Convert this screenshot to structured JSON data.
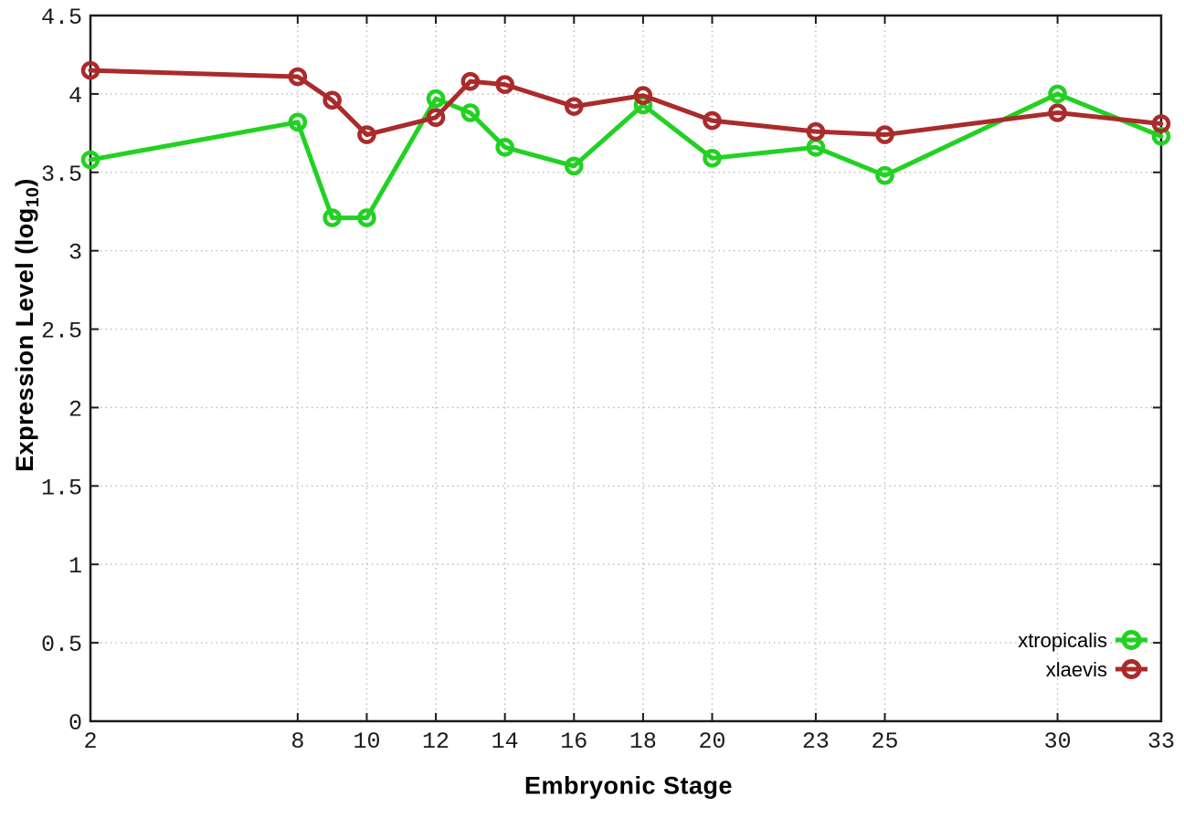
{
  "chart_data": {
    "type": "line",
    "title": "",
    "xlabel": "Embryonic Stage",
    "ylabel": "Expression Level (log10)",
    "ylabel_parts": {
      "main": "Expression Level (log",
      "sub": "10",
      "end": ")"
    },
    "x": [
      2,
      8,
      9,
      10,
      12,
      13,
      14,
      16,
      18,
      20,
      23,
      25,
      30,
      33
    ],
    "series": [
      {
        "name": "xtropicalis",
        "color": "#22d122",
        "marker": "open-circle",
        "values": [
          3.58,
          3.82,
          3.21,
          3.21,
          3.97,
          3.88,
          3.66,
          3.54,
          3.93,
          3.59,
          3.66,
          3.48,
          4.0,
          3.73
        ]
      },
      {
        "name": "xlaevis",
        "color": "#aa2b2b",
        "marker": "open-circle",
        "values": [
          4.15,
          4.11,
          3.96,
          3.74,
          3.85,
          4.08,
          4.06,
          3.92,
          3.99,
          3.83,
          3.76,
          3.74,
          3.88,
          3.81
        ]
      }
    ],
    "xlim": [
      2,
      33
    ],
    "ylim": [
      0,
      4.5
    ],
    "x_ticks": [
      2,
      8,
      10,
      12,
      14,
      16,
      18,
      20,
      23,
      25,
      30,
      33
    ],
    "x_tick_labels": [
      "2",
      "8",
      "10",
      "12",
      "14",
      "16",
      "18",
      "20",
      "23",
      "25",
      "30",
      "33"
    ],
    "y_ticks": [
      0,
      0.5,
      1,
      1.5,
      2,
      2.5,
      3,
      3.5,
      4,
      4.5
    ],
    "y_tick_labels": [
      "0",
      "0.5",
      "1",
      "1.5",
      "2",
      "2.5",
      "3",
      "3.5",
      "4",
      "4.5"
    ],
    "grid": true,
    "grid_style": "dotted",
    "legend_position": "bottom-right",
    "colors": {
      "grid": "#b8b8b8",
      "border": "#1c1c1c",
      "text": "#1a1a1a",
      "background": "#ffffff"
    }
  }
}
